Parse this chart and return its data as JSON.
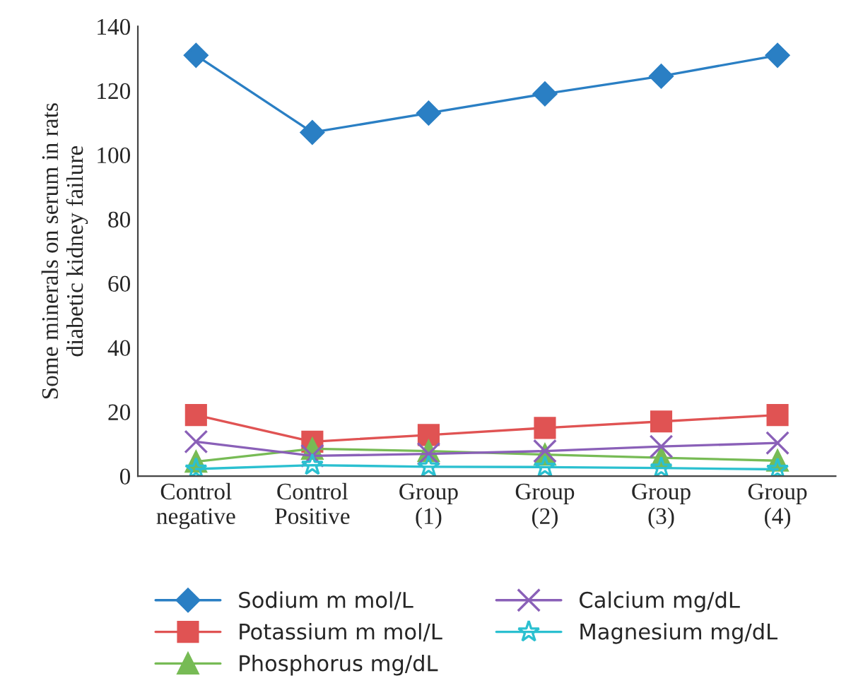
{
  "chart_data": {
    "type": "line",
    "ylabel": "Some minerals on serum in rats\ndiabetic kidney failure",
    "categories": [
      "Control\nnegative",
      "Control\nPositive",
      "Group\n(1)",
      "Group\n(2)",
      "Group\n(3)",
      "Group\n(4)"
    ],
    "series": [
      {
        "name": "Sodium m mol/L",
        "color": "#2a7fc4",
        "marker": "diamond",
        "values": [
          131,
          107,
          113,
          119,
          124.5,
          131
        ]
      },
      {
        "name": "Potassium m mol/L",
        "color": "#e05353",
        "marker": "square",
        "values": [
          19,
          10.7,
          12.8,
          15,
          17,
          19
        ]
      },
      {
        "name": "Phosphorus mg/dL",
        "color": "#77bb55",
        "marker": "triangle",
        "values": [
          4.5,
          8.5,
          7.8,
          6.7,
          5.7,
          4.8
        ]
      },
      {
        "name": "Calcium mg/dL",
        "color": "#8a60b8",
        "marker": "cross",
        "values": [
          10.7,
          6.3,
          6.9,
          7.8,
          9.2,
          10.3
        ]
      },
      {
        "name": "Magnesium mg/dL",
        "color": "#2bc0d0",
        "marker": "star",
        "values": [
          2.2,
          3.4,
          2.9,
          2.8,
          2.5,
          2.1
        ]
      }
    ],
    "ylim": [
      0,
      140
    ],
    "yticks": [
      0,
      20,
      40,
      60,
      80,
      100,
      120,
      140
    ],
    "grid": false,
    "legend": "bottom",
    "line_style": "solid"
  }
}
